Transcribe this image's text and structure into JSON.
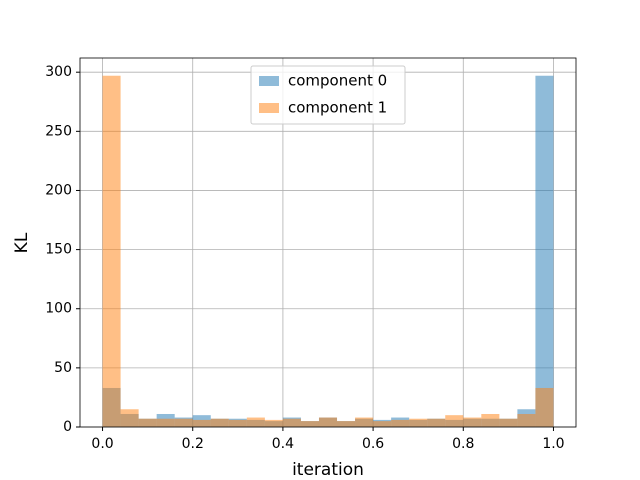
{
  "chart_data": {
    "type": "histogram",
    "xlabel": "iteration",
    "ylabel": "KL",
    "bins": [
      0,
      0.04,
      0.08,
      0.12,
      0.16,
      0.2,
      0.24,
      0.28,
      0.32,
      0.36,
      0.4,
      0.44,
      0.48,
      0.52,
      0.56,
      0.6,
      0.64,
      0.68,
      0.72,
      0.76,
      0.8,
      0.84,
      0.88,
      0.92,
      0.96,
      1
    ],
    "series": [
      {
        "name": "component 0",
        "color": "#1f77b4",
        "values": [
          33,
          11,
          7,
          11,
          8,
          10,
          7,
          7,
          6,
          5,
          8,
          5,
          8,
          5,
          7,
          6,
          8,
          6,
          7,
          6,
          7,
          7,
          7,
          15,
          297
        ]
      },
      {
        "name": "component 1",
        "color": "#ff7f0e",
        "values": [
          297,
          15,
          7,
          7,
          7,
          6,
          7,
          6,
          8,
          6,
          7,
          5,
          8,
          5,
          8,
          5,
          6,
          7,
          7,
          10,
          8,
          11,
          7,
          11,
          33
        ]
      }
    ],
    "alpha": 0.5,
    "xlim": [
      -0.05,
      1.05
    ],
    "ylim": [
      0,
      312
    ],
    "xticks": [
      {
        "value": 0,
        "label": "0.0"
      },
      0.2,
      0.4,
      0.6,
      0.8,
      {
        "value": 1,
        "label": "1.0"
      }
    ],
    "yticks": [
      0,
      50,
      100,
      150,
      200,
      250,
      300
    ],
    "grid": true,
    "legend": "upper center"
  }
}
